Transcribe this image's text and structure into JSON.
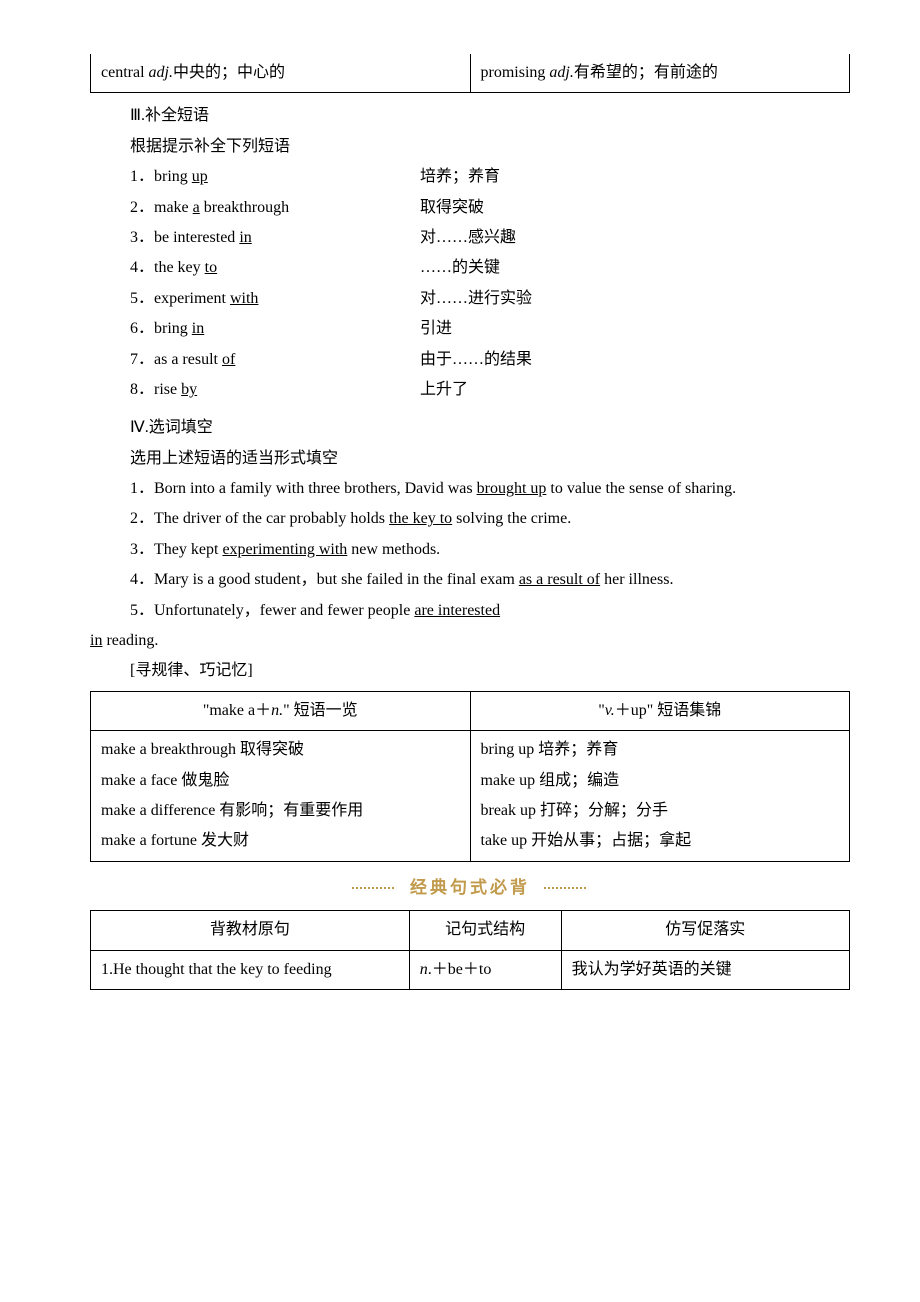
{
  "topTable": {
    "left": "central <i>adj.</i>中央的；中心的",
    "right": "promising <i>adj.</i>有希望的；有前途的"
  },
  "sec3": {
    "title": "Ⅲ.补全短语",
    "sub": "根据提示补全下列短语",
    "items": [
      {
        "n": "1．",
        "l": "bring <u>up</u>",
        "r": "培养；养育"
      },
      {
        "n": "2．",
        "l": "make <u>a</u> breakthrough",
        "r": "取得突破"
      },
      {
        "n": "3．",
        "l": "be interested <u>in</u>",
        "r": "对……感兴趣"
      },
      {
        "n": "4．",
        "l": "the key <u>to</u>",
        "r": "……的关键"
      },
      {
        "n": "5．",
        "l": "experiment <u>with</u>",
        "r": "对……进行实验"
      },
      {
        "n": "6．",
        "l": "bring <u>in</u>",
        "r": "引进"
      },
      {
        "n": "7．",
        "l": "as a result <u>of</u>",
        "r": "由于……的结果"
      },
      {
        "n": "8．",
        "l": "rise <u>by</u>",
        "r": "上升了"
      }
    ]
  },
  "sec4": {
    "title": "Ⅳ.选词填空",
    "sub": "选用上述短语的适当形式填空",
    "items": [
      "1．Born into a family with three brothers, David was <u>brought up</u> to value the sense of sharing.",
      "2．The driver of the car probably holds <u>the key to</u> solving the crime.",
      "3．They kept <u>experimenting with</u> new methods.",
      "4．Mary is a good student，but she failed in the final exam <u>as a result of</u> her illness.",
      "5．Unfortunately，fewer and fewer people <u>are interested</u>",
      "<u>in</u> reading."
    ]
  },
  "ruleTitle": "[寻规律、巧记忆]",
  "ruleTable": {
    "headers": [
      "\"make a＋<i>n.</i>\" 短语一览",
      "\"<i>v.</i>＋up\" 短语集锦"
    ],
    "left": [
      "make a breakthrough  取得突破",
      "make a face  做鬼脸",
      "make a difference  有影响；有重要作用",
      "make a fortune  发大财"
    ],
    "right": [
      "bring up  培养；养育",
      "make up 组成；编造",
      "break up  打碎；分解；分手",
      "take up  开始从事；占据；拿起"
    ]
  },
  "banner": "经典句式必背",
  "lastTable": {
    "headers": [
      "背教材原句",
      "记句式结构",
      "仿写促落实"
    ],
    "row": [
      "1.He thought that the key to feeding",
      "<i>n</i>.＋be＋to",
      "我认为学好英语的关键"
    ]
  }
}
